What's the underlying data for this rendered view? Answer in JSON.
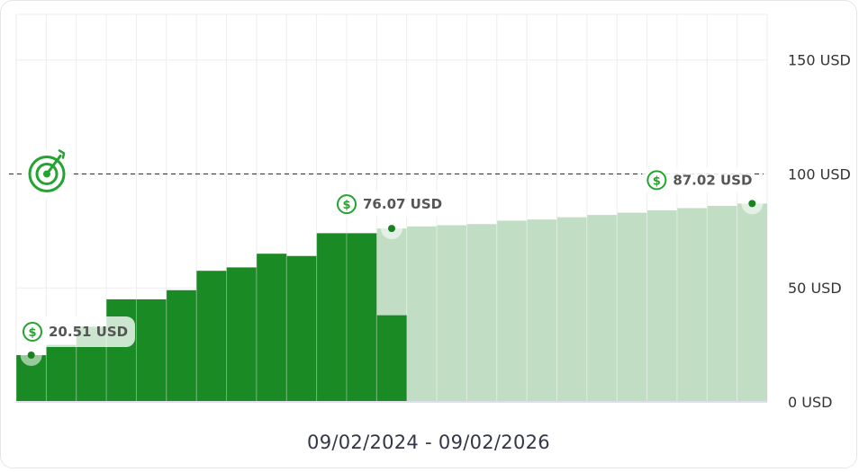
{
  "chart_data": {
    "type": "bar",
    "ylim": [
      0,
      170
    ],
    "y_ticks": [
      {
        "value": 0,
        "label": "0 USD"
      },
      {
        "value": 50,
        "label": "50 USD"
      },
      {
        "value": 100,
        "label": "100 USD"
      },
      {
        "value": 150,
        "label": "150 USD"
      }
    ],
    "target_value": 100,
    "series": [
      {
        "kind": "actual",
        "values": [
          20.5,
          25,
          33,
          45,
          45,
          49,
          57.5,
          59,
          65,
          64,
          74,
          74,
          38
        ]
      },
      {
        "kind": "projected",
        "values": [
          null,
          null,
          null,
          null,
          null,
          null,
          null,
          null,
          null,
          null,
          null,
          null,
          76.07,
          77,
          77.5,
          78,
          79.5,
          80,
          81,
          82,
          83,
          84,
          85,
          86,
          87.02
        ]
      }
    ],
    "callouts": [
      {
        "value": 20.51,
        "label": "20.51 USD",
        "bar": 0
      },
      {
        "value": 76.07,
        "label": "76.07 USD",
        "bar": 12
      },
      {
        "value": 87.02,
        "label": "87.02 USD",
        "bar": 24
      }
    ],
    "colors": {
      "actual": "#1a8a25",
      "projected": "#c1ddc4",
      "icon": "#23a32f",
      "marker": "#17821f"
    },
    "grid": true
  },
  "date_range": "09/02/2024 - 09/02/2026"
}
